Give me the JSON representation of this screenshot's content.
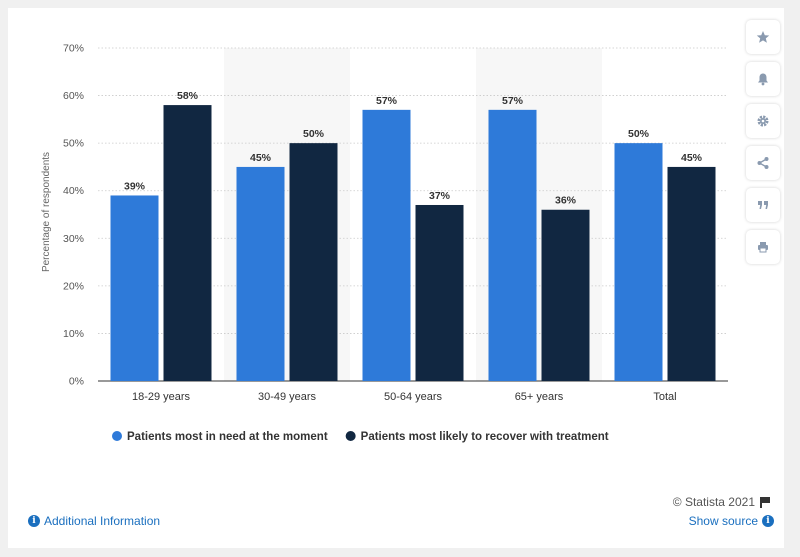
{
  "chart_data": {
    "type": "bar",
    "categories": [
      "18-29 years",
      "30-49 years",
      "50-64 years",
      "65+ years",
      "Total"
    ],
    "series": [
      {
        "name": "Patients most in need at the moment",
        "values": [
          39,
          45,
          57,
          57,
          50
        ],
        "color": "#2e7ad9"
      },
      {
        "name": "Patients most likely to recover with treatment",
        "values": [
          58,
          50,
          37,
          36,
          45
        ],
        "color": "#112741"
      }
    ],
    "data_labels": [
      [
        "39%",
        "45%",
        "57%",
        "57%",
        "50%"
      ],
      [
        "58%",
        "50%",
        "37%",
        "36%",
        "45%"
      ]
    ],
    "title": "",
    "xlabel": "",
    "ylabel": "Percentage of respondents",
    "ylim": [
      0,
      70
    ],
    "yticks": [
      "0%",
      "10%",
      "20%",
      "30%",
      "40%",
      "50%",
      "60%",
      "70%"
    ],
    "grid": true,
    "legend_position": "bottom"
  },
  "sidebar": {
    "icons": [
      "star-icon",
      "bell-icon",
      "gear-icon",
      "share-icon",
      "quote-icon",
      "print-icon"
    ]
  },
  "footer": {
    "additional_info": "Additional Information",
    "show_source": "Show source",
    "copyright": "© Statista 2021"
  },
  "colors": {
    "alt_band": "#f7f7f7",
    "link": "#1a6fbf",
    "icon": "#8a9aaf"
  }
}
